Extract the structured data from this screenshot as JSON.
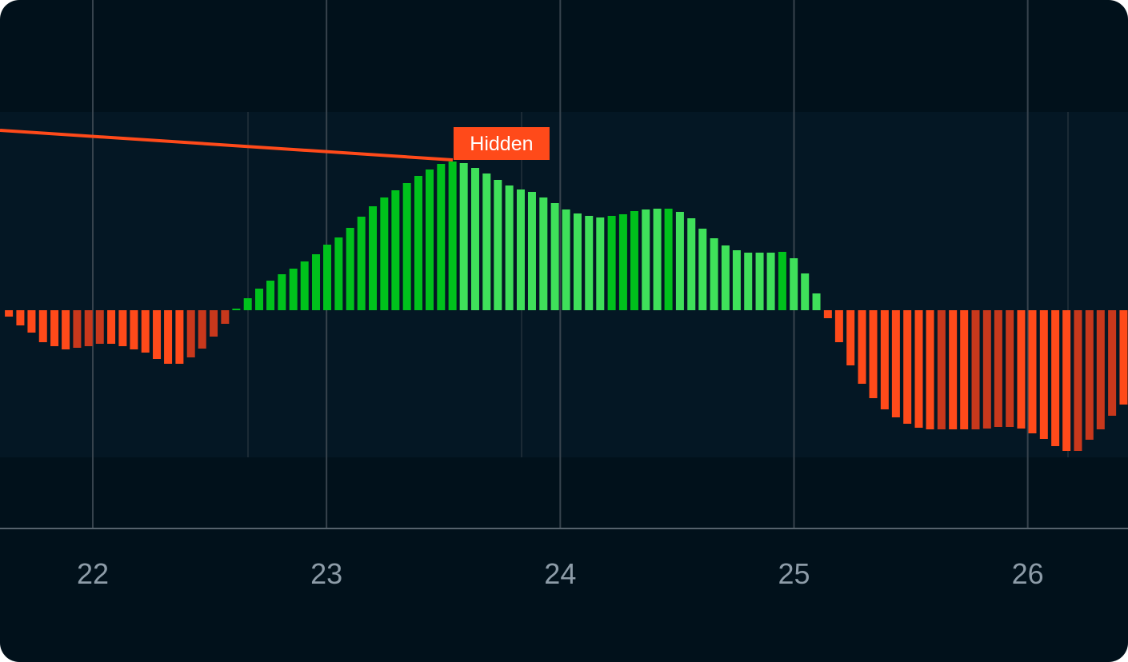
{
  "chart_data": {
    "type": "bar",
    "x": [
      21.641,
      21.69,
      21.738,
      21.787,
      21.836,
      21.884,
      21.933,
      21.982,
      22.03,
      22.079,
      22.128,
      22.176,
      22.225,
      22.274,
      22.322,
      22.371,
      22.42,
      22.468,
      22.517,
      22.566,
      22.614,
      22.663,
      22.712,
      22.76,
      22.809,
      22.858,
      22.906,
      22.955,
      23.003,
      23.052,
      23.101,
      23.149,
      23.198,
      23.247,
      23.295,
      23.344,
      23.393,
      23.441,
      23.49,
      23.539,
      23.587,
      23.636,
      23.685,
      23.733,
      23.782,
      23.831,
      23.879,
      23.928,
      23.977,
      24.025,
      24.074,
      24.123,
      24.171,
      24.22,
      24.269,
      24.317,
      24.366,
      24.415,
      24.463,
      24.512,
      24.561,
      24.609,
      24.658,
      24.707,
      24.755,
      24.804,
      24.853,
      24.901,
      24.95,
      24.999,
      25.047,
      25.096,
      25.145,
      25.193,
      25.242,
      25.291,
      25.339,
      25.388,
      25.436,
      25.485,
      25.534,
      25.582,
      25.631,
      25.68,
      25.728,
      25.777,
      25.826,
      25.874,
      25.923,
      25.972,
      26.02,
      26.069,
      26.118,
      26.166,
      26.215,
      26.264,
      26.312,
      26.361,
      26.41
    ],
    "values": [
      -0.08,
      -0.19,
      -0.28,
      -0.4,
      -0.45,
      -0.49,
      -0.47,
      -0.45,
      -0.42,
      -0.42,
      -0.45,
      -0.49,
      -0.53,
      -0.61,
      -0.67,
      -0.67,
      -0.59,
      -0.48,
      -0.33,
      -0.17,
      0.02,
      0.15,
      0.27,
      0.37,
      0.45,
      0.52,
      0.61,
      0.7,
      0.82,
      0.91,
      1.03,
      1.17,
      1.3,
      1.41,
      1.5,
      1.59,
      1.68,
      1.76,
      1.83,
      1.86,
      1.84,
      1.78,
      1.71,
      1.63,
      1.56,
      1.51,
      1.48,
      1.41,
      1.34,
      1.26,
      1.21,
      1.18,
      1.16,
      1.18,
      1.2,
      1.24,
      1.26,
      1.27,
      1.27,
      1.23,
      1.15,
      1.02,
      0.9,
      0.81,
      0.75,
      0.72,
      0.72,
      0.72,
      0.73,
      0.65,
      0.46,
      0.21,
      -0.1,
      -0.4,
      -0.69,
      -0.92,
      -1.1,
      -1.24,
      -1.34,
      -1.42,
      -1.47,
      -1.49,
      -1.49,
      -1.49,
      -1.49,
      -1.49,
      -1.48,
      -1.46,
      -1.46,
      -1.48,
      -1.54,
      -1.61,
      -1.7,
      -1.76,
      -1.76,
      -1.62,
      -1.49,
      -1.32,
      -1.18
    ],
    "colors": [
      "#ff4a1a",
      "#ff4a1a",
      "#ff4a1a",
      "#ff4a1a",
      "#ff4a1a",
      "#ff4a1a",
      "#c8381c",
      "#c8381c",
      "#c8381c",
      "#ff4a1a",
      "#ff4a1a",
      "#ff4a1a",
      "#ff4a1a",
      "#ff4a1a",
      "#ff4a1a",
      "#ff4a1a",
      "#c8381c",
      "#c8381c",
      "#c8381c",
      "#c8381c",
      "#00c21c",
      "#00c21c",
      "#00c21c",
      "#00c21c",
      "#00c21c",
      "#00c21c",
      "#00c21c",
      "#00c21c",
      "#00c21c",
      "#00c21c",
      "#00c21c",
      "#00c21c",
      "#00c21c",
      "#00c21c",
      "#00c21c",
      "#00c21c",
      "#00c21c",
      "#00c21c",
      "#00c21c",
      "#00c21c",
      "#3fe05a",
      "#3fe05a",
      "#3fe05a",
      "#3fe05a",
      "#3fe05a",
      "#3fe05a",
      "#3fe05a",
      "#3fe05a",
      "#3fe05a",
      "#3fe05a",
      "#3fe05a",
      "#3fe05a",
      "#3fe05a",
      "#00c21c",
      "#00c21c",
      "#00c21c",
      "#3fe05a",
      "#3fe05a",
      "#00c21c",
      "#3fe05a",
      "#3fe05a",
      "#3fe05a",
      "#3fe05a",
      "#3fe05a",
      "#3fe05a",
      "#3fe05a",
      "#3fe05a",
      "#3fe05a",
      "#00c21c",
      "#3fe05a",
      "#3fe05a",
      "#3fe05a",
      "#ff4a1a",
      "#ff4a1a",
      "#ff4a1a",
      "#ff4a1a",
      "#ff4a1a",
      "#ff4a1a",
      "#ff4a1a",
      "#ff4a1a",
      "#ff4a1a",
      "#ff4a1a",
      "#c8381c",
      "#ff4a1a",
      "#ff4a1a",
      "#c8381c",
      "#c8381c",
      "#c8381c",
      "#c8381c",
      "#ff4a1a",
      "#ff4a1a",
      "#ff4a1a",
      "#ff4a1a",
      "#ff4a1a",
      "#c8381c",
      "#c8381c",
      "#c8381c",
      "#c8381c",
      "#ff4a1a"
    ],
    "line": {
      "x": [
        21.603,
        23.54
      ],
      "values": [
        2.25,
        1.88
      ],
      "color": "#ff4a1a"
    },
    "annotation": "Hidden",
    "xlim": [
      21.603,
      26.429
    ],
    "xticks": [
      22,
      23,
      24,
      25,
      26
    ],
    "ylim": [
      -1.84,
      2.48
    ],
    "grid": true
  }
}
